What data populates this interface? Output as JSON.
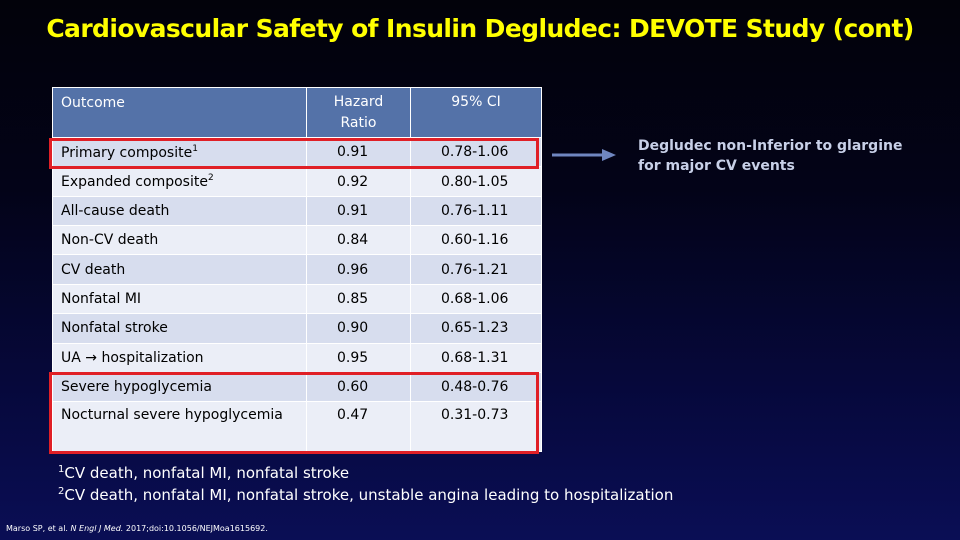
{
  "slide": {
    "title": "Cardiovascular Safety of Insulin Degludec: DEVOTE Study (cont)"
  },
  "table": {
    "headers": {
      "outcome": "Outcome",
      "hazard_ratio_line1": "Hazard",
      "hazard_ratio_line2": "Ratio",
      "ci": "95% CI"
    },
    "rows": [
      {
        "outcome": "Primary composite",
        "sup": "1",
        "hr": "0.91",
        "ci": "0.78-1.06",
        "highlighted": true
      },
      {
        "outcome": "Expanded composite",
        "sup": "2",
        "hr": "0.92",
        "ci": "0.80-1.05",
        "highlighted": false
      },
      {
        "outcome": "All-cause death",
        "sup": "",
        "hr": "0.91",
        "ci": "0.76-1.11",
        "highlighted": false
      },
      {
        "outcome": "Non-CV death",
        "sup": "",
        "hr": "0.84",
        "ci": "0.60-1.16",
        "highlighted": false
      },
      {
        "outcome": "CV death",
        "sup": "",
        "hr": "0.96",
        "ci": "0.76-1.21",
        "highlighted": false
      },
      {
        "outcome": "Nonfatal MI",
        "sup": "",
        "hr": "0.85",
        "ci": "0.68-1.06",
        "highlighted": false
      },
      {
        "outcome": "Nonfatal stroke",
        "sup": "",
        "hr": "0.90",
        "ci": "0.65-1.23",
        "highlighted": false
      },
      {
        "outcome": "UA → hospitalization",
        "sup": "",
        "hr": "0.95",
        "ci": "0.68-1.31",
        "highlighted": false
      },
      {
        "outcome": "Severe hypoglycemia",
        "sup": "",
        "hr": "0.60",
        "ci": "0.48-0.76",
        "highlighted": true
      },
      {
        "outcome": "Nocturnal severe hypoglycemia",
        "sup": "",
        "hr": "0.47",
        "ci": "0.31-0.73",
        "highlighted": true
      }
    ]
  },
  "callout": {
    "line1": "Degludec non-Inferior to glargine",
    "line2": "for major CV events"
  },
  "footnotes": [
    {
      "mark": "1",
      "text": "CV death, nonfatal MI, nonfatal stroke"
    },
    {
      "mark": "2",
      "text": "CV death, nonfatal MI, nonfatal stroke, unstable angina leading to hospitalization"
    }
  ],
  "citation": {
    "before": "Marso SP, et al. ",
    "journal": "N Engl J Med.",
    "after": " 2017;doi:10.1056/NEJMoa1615692."
  },
  "colors": {
    "title": "#ffff00",
    "header_fill": "#5472a8",
    "row_fill_odd": "#d7ddee",
    "row_fill_even": "#ebeef7",
    "highlight_border": "#e01f26",
    "arrow": "#6f86c0",
    "callout_text": "#c8d0e8"
  }
}
